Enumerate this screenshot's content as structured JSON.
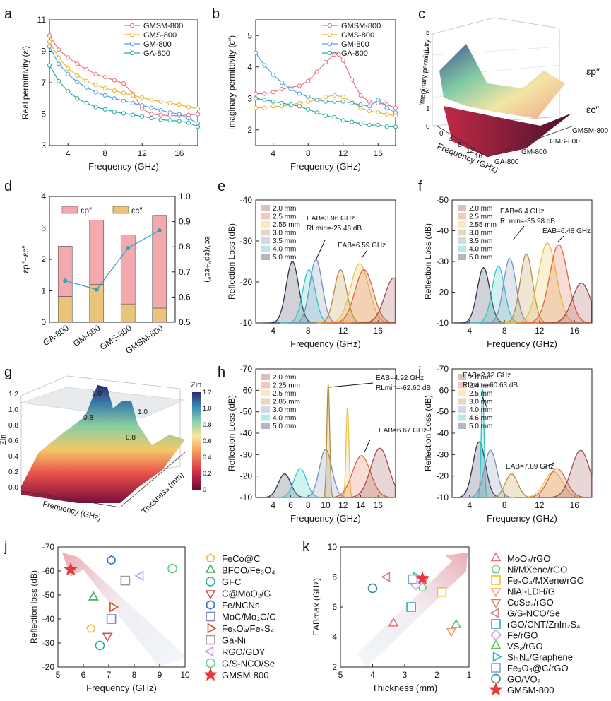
{
  "panel_letters": [
    "a",
    "b",
    "c",
    "d",
    "e",
    "f",
    "g",
    "h",
    "i",
    "j",
    "k"
  ],
  "chart_data": [
    {
      "id": "a",
      "type": "line",
      "xlabel": "Frequency (GHz)",
      "ylabel": "Real permittivity (ε′)",
      "xlim": [
        2,
        18
      ],
      "ylim": [
        3,
        11
      ],
      "xticks": [
        4,
        8,
        12,
        16
      ],
      "yticks": [
        3,
        5,
        7,
        9,
        11
      ],
      "series": [
        {
          "name": "GMSM-800",
          "color": "#e8707a",
          "x": [
            2,
            3,
            4,
            5,
            6,
            7,
            8,
            9,
            10,
            11,
            12,
            13,
            14,
            15,
            16,
            17,
            18
          ],
          "y": [
            10.0,
            9.1,
            8.6,
            8.2,
            7.85,
            7.55,
            7.35,
            7.15,
            6.95,
            6.3,
            5.35,
            5.0,
            4.95,
            4.9,
            4.9,
            4.95,
            5.0
          ]
        },
        {
          "name": "GMS-800",
          "color": "#e8b82a",
          "x": [
            2,
            3,
            4,
            5,
            6,
            7,
            8,
            9,
            10,
            11,
            12,
            13,
            14,
            15,
            16,
            17,
            18
          ],
          "y": [
            9.6,
            8.6,
            7.9,
            7.45,
            7.1,
            6.85,
            6.65,
            6.5,
            6.35,
            6.2,
            6.05,
            5.9,
            5.8,
            5.7,
            5.6,
            5.45,
            5.35
          ]
        },
        {
          "name": "GM-800",
          "color": "#4aa3df",
          "x": [
            2,
            3,
            4,
            5,
            6,
            7,
            8,
            9,
            10,
            11,
            12,
            13,
            14,
            15,
            16,
            17,
            18
          ],
          "y": [
            9.3,
            8.2,
            7.55,
            7.05,
            6.7,
            6.4,
            6.2,
            6.0,
            5.85,
            5.7,
            5.55,
            5.4,
            5.25,
            5.1,
            5.0,
            4.75,
            4.4
          ]
        },
        {
          "name": "GA-800",
          "color": "#2aa9a0",
          "x": [
            2,
            3,
            4,
            5,
            6,
            7,
            8,
            9,
            10,
            11,
            12,
            13,
            14,
            15,
            16,
            17,
            18
          ],
          "y": [
            8.1,
            7.1,
            6.45,
            6.0,
            5.7,
            5.45,
            5.3,
            5.15,
            5.05,
            4.95,
            4.85,
            4.75,
            4.65,
            4.6,
            4.55,
            4.45,
            4.2
          ]
        }
      ]
    },
    {
      "id": "b",
      "type": "line",
      "xlabel": "Frequency (GHz)",
      "ylabel": "Imaginary permittivity (ε″)",
      "xlim": [
        2,
        18
      ],
      "ylim": [
        1.5,
        5.5
      ],
      "xticks": [
        4,
        8,
        12,
        16
      ],
      "yticks": [
        2,
        3,
        4,
        5
      ],
      "series": [
        {
          "name": "GMSM-800",
          "color": "#e8707a",
          "x": [
            2,
            3,
            4,
            5,
            6,
            7,
            8,
            9,
            10,
            11,
            11.5,
            12,
            13,
            14,
            15,
            16,
            17,
            18
          ],
          "y": [
            3.15,
            3.15,
            3.2,
            3.3,
            3.35,
            3.4,
            3.55,
            3.85,
            4.15,
            4.4,
            4.4,
            4.2,
            3.6,
            3.1,
            2.9,
            2.85,
            2.8,
            2.7
          ]
        },
        {
          "name": "GMS-800",
          "color": "#e8b82a",
          "x": [
            2,
            3,
            4,
            5,
            6,
            7,
            8,
            9,
            10,
            11,
            12,
            13,
            14,
            15,
            16,
            17,
            18
          ],
          "y": [
            2.7,
            2.7,
            2.75,
            2.75,
            2.8,
            2.85,
            2.9,
            2.95,
            3.05,
            3.1,
            3.05,
            2.9,
            2.7,
            2.6,
            2.55,
            2.5,
            2.45
          ]
        },
        {
          "name": "GM-800",
          "color": "#4aa3df",
          "x": [
            2,
            3,
            4,
            5,
            6,
            7,
            8,
            9,
            10,
            11,
            12,
            13,
            14,
            15,
            16,
            16.5,
            17,
            18
          ],
          "y": [
            4.45,
            4.05,
            3.75,
            3.5,
            3.3,
            3.15,
            3.05,
            2.95,
            2.9,
            2.9,
            2.9,
            2.85,
            2.8,
            2.75,
            2.95,
            2.9,
            2.7,
            2.55
          ]
        },
        {
          "name": "GA-800",
          "color": "#2aa9a0",
          "x": [
            2,
            3,
            4,
            5,
            6,
            7,
            8,
            9,
            10,
            11,
            12,
            13,
            14,
            15,
            16,
            17,
            18
          ],
          "y": [
            3.0,
            2.95,
            2.9,
            2.85,
            2.8,
            2.75,
            2.65,
            2.55,
            2.45,
            2.4,
            2.3,
            2.25,
            2.2,
            2.15,
            2.15,
            2.1,
            2.1
          ]
        }
      ]
    },
    {
      "id": "c",
      "type": "surface",
      "zlabel": "Imaginary permittivity",
      "xlabel": "Frequency (GHz)",
      "xticks": [
        "0",
        "4",
        "8",
        "12",
        "16"
      ],
      "zticks": [
        "0",
        "1",
        "2",
        "3",
        "4",
        "5"
      ],
      "categories": [
        "GA-800",
        "GM-800",
        "GMS-800",
        "GMSM-800"
      ],
      "series_labels": [
        "εp″",
        "εc″"
      ]
    },
    {
      "id": "d",
      "type": "bar",
      "categories": [
        "GA-800",
        "GM-800",
        "GMS-800",
        "GMSM-800"
      ],
      "ylabel_left": "εp″+εc″",
      "ylabel_right": "εc″/(εp″+εc″)",
      "ylim": [
        0,
        4
      ],
      "yticks": [
        0,
        1,
        2,
        3,
        4
      ],
      "ylim_right": [
        0.5,
        1.0
      ],
      "yticks_right": [
        0.5,
        0.6,
        0.7,
        0.8,
        0.9,
        1.0
      ],
      "series": [
        {
          "name": "εp″",
          "color": "#f3a9ad",
          "values": [
            1.6,
            2.05,
            2.2,
            2.95
          ]
        },
        {
          "name": "εc″",
          "color": "#e9c47a",
          "values": [
            0.82,
            1.2,
            0.58,
            0.45
          ]
        },
        {
          "name": "ratio",
          "color": "#2ca3c0",
          "values": [
            0.665,
            0.63,
            0.795,
            0.865
          ]
        }
      ]
    },
    {
      "id": "e",
      "type": "line",
      "xlabel": "Frequency (GHz)",
      "ylabel": "Reflection Loss (dB)",
      "xlim": [
        2,
        18
      ],
      "ylim": [
        -10,
        -40
      ],
      "xticks": [
        4,
        8,
        12,
        16
      ],
      "yticks": [
        -10,
        -20,
        -30,
        -40
      ],
      "legend": [
        "2.0 mm",
        "2.5 mm",
        "2.55 mm",
        "3.0 mm",
        "3.5 mm",
        "4.0 mm",
        "5.0 mm"
      ],
      "annotations": [
        "EAB=3.96 GHz",
        "RLmin=-25.48 dB",
        "EAB=6.59 GHz"
      ],
      "peaks": [
        {
          "f": 6.2,
          "rl": -25
        },
        {
          "f": 8.1,
          "rl": -23
        },
        {
          "f": 8.9,
          "rl": -25.5
        },
        {
          "f": 11.7,
          "rl": -23
        },
        {
          "f": 13.9,
          "rl": -24.5
        },
        {
          "f": 14.4,
          "rl": -23
        },
        {
          "f": 17.8,
          "rl": -21
        }
      ]
    },
    {
      "id": "f",
      "type": "line",
      "xlabel": "Frequency (GHz)",
      "ylabel": "Reflection Loss (dB)",
      "xlim": [
        2,
        18
      ],
      "ylim": [
        -10,
        -50
      ],
      "xticks": [
        4,
        8,
        12,
        16
      ],
      "yticks": [
        -10,
        -20,
        -30,
        -40,
        -50
      ],
      "legend": [
        "2.0 mm",
        "2.5 mm",
        "2.55 mm",
        "3.0 mm",
        "3.5 mm",
        "4.0 mm",
        "5.0 mm"
      ],
      "annotations": [
        "EAB=6.4 GHz",
        "RLmin=-35.98 dB",
        "EAB=6.48 GHz"
      ],
      "peaks": [
        {
          "f": 5.6,
          "rl": -28
        },
        {
          "f": 7.3,
          "rl": -28.5
        },
        {
          "f": 8.6,
          "rl": -31
        },
        {
          "f": 10.5,
          "rl": -32.5
        },
        {
          "f": 12.9,
          "rl": -36
        },
        {
          "f": 14.2,
          "rl": -35.5
        },
        {
          "f": 16.8,
          "rl": -23
        }
      ]
    },
    {
      "id": "g",
      "type": "surface",
      "xlabel": "Frequency (GHz)",
      "ylabel": "Thickness (mm)",
      "zlabel": "Zin",
      "zticks": [
        "0.0",
        "0.2",
        "0.4",
        "0.6",
        "0.8",
        "1.0",
        "1.2"
      ],
      "colorbar_title": "Zin",
      "colorbar_ticks": [
        "0",
        "0.2",
        "0.4",
        "0.6",
        "0.8",
        "1.0",
        "1.2"
      ],
      "contour_labels": [
        "1.0",
        "1.0",
        "0.8",
        "0.8"
      ]
    },
    {
      "id": "h",
      "type": "line",
      "xlabel": "Frequency (GHz)",
      "ylabel": "Reflection Loss (dB)",
      "xlim": [
        2,
        18
      ],
      "ylim": [
        -10,
        -70
      ],
      "xticks": [
        4,
        6,
        8,
        10,
        12,
        14,
        16
      ],
      "yticks": [
        -10,
        -20,
        -30,
        -40,
        -50,
        -60,
        -70
      ],
      "legend": [
        "2.0 mm",
        "2.25 mm",
        "2.5 mm",
        "2.85 mm",
        "3.0 mm",
        "4.0 mm",
        "5.0 mm"
      ],
      "annotations": [
        "EAB=4.92 GHz",
        "RLmin=-62.60 dB",
        "EAB=6.67 GHz"
      ],
      "peaks": [
        {
          "f": 5.3,
          "rl": -21
        },
        {
          "f": 7.1,
          "rl": -23.5
        },
        {
          "f": 10.0,
          "rl": -32.5
        },
        {
          "f": 10.3,
          "rl": -62.6
        },
        {
          "f": 12.5,
          "rl": -52
        },
        {
          "f": 14.1,
          "rl": -29.5
        },
        {
          "f": 16.2,
          "rl": -33
        }
      ]
    },
    {
      "id": "i",
      "type": "line",
      "xlabel": "Frequency (GHz)",
      "ylabel": "Reflection Loss (dB)",
      "xlim": [
        2,
        18
      ],
      "ylim": [
        -10,
        -70
      ],
      "xticks": [
        4,
        8,
        12,
        16
      ],
      "yticks": [
        -10,
        -20,
        -30,
        -40,
        -50,
        -60,
        -70
      ],
      "legend": [
        "2.0 mm",
        "2.4 mm",
        "2.5 mm",
        "3.0 mm",
        "4.0 mm",
        "4.6 mm",
        "5.0 mm"
      ],
      "annotations": [
        "EAB=2.12 GHz",
        "RLmin=-60.63 dB",
        "EAB=7.89 GHz"
      ],
      "peaks": [
        {
          "f": 5.1,
          "rl": -36
        },
        {
          "f": 5.5,
          "rl": -60.6
        },
        {
          "f": 6.4,
          "rl": -32
        },
        {
          "f": 8.8,
          "rl": -21
        },
        {
          "f": 13.6,
          "rl": -22
        },
        {
          "f": 14.0,
          "rl": -23.5
        },
        {
          "f": 16.7,
          "rl": -32
        }
      ]
    },
    {
      "id": "j",
      "type": "scatter",
      "xlabel": "Frequency (GHz)",
      "ylabel": "Reflection loss (dB)",
      "xlim": [
        5,
        10
      ],
      "ylim": [
        -20,
        -70
      ],
      "xticks": [
        5,
        6,
        7,
        8,
        9,
        10
      ],
      "yticks": [
        -20,
        -30,
        -40,
        -50,
        -60,
        -70
      ],
      "points": [
        {
          "name": "FeCo@C",
          "marker": "pentagon",
          "color": "#f0b93b",
          "x": 6.3,
          "y": -36
        },
        {
          "name": "BFCO/Fe₃O₄",
          "marker": "triangle-up",
          "color": "#3aa85a",
          "x": 6.4,
          "y": -49
        },
        {
          "name": "GFC",
          "marker": "circle",
          "color": "#2aafb0",
          "x": 6.65,
          "y": -29
        },
        {
          "name": "C@MoO₂/G",
          "marker": "triangle-down",
          "color": "#d9534f",
          "x": 6.95,
          "y": -33
        },
        {
          "name": "Fe/NCNs",
          "marker": "hexagon",
          "color": "#3a78c2",
          "x": 7.1,
          "y": -64.5
        },
        {
          "name": "MoC/Mo₂C/C",
          "marker": "square",
          "color": "#7d7fc8",
          "x": 7.1,
          "y": -40
        },
        {
          "name": "Fe₃O₄/Fe₃S₄",
          "marker": "triangle-right",
          "color": "#c9511f",
          "x": 7.15,
          "y": -45
        },
        {
          "name": "Ga-Ni",
          "marker": "square",
          "color": "#9a9a9a",
          "x": 7.65,
          "y": -56
        },
        {
          "name": "RGO/GDY",
          "marker": "triangle-left",
          "color": "#c79ae3",
          "x": 8.25,
          "y": -58
        },
        {
          "name": "G/S-NCO/Se",
          "marker": "circle",
          "color": "#5fcf7d",
          "x": 9.5,
          "y": -61
        },
        {
          "name": "GMSM-800",
          "marker": "star",
          "color": "#e8363a",
          "x": 5.5,
          "y": -60.6
        }
      ]
    },
    {
      "id": "k",
      "type": "scatter",
      "xlabel": "Thickness (mm)",
      "ylabel": "EABmax (GHz)",
      "xlim": [
        5,
        1
      ],
      "ylim": [
        2,
        10
      ],
      "xticks": [
        5,
        4,
        3,
        2,
        1
      ],
      "yticks": [
        2,
        4,
        6,
        8,
        10
      ],
      "points": [
        {
          "name": "MoO₂/rGO",
          "marker": "triangle-up",
          "color": "#e8707a",
          "x": 3.35,
          "y": 4.9
        },
        {
          "name": "Ni/MXene/rGO",
          "marker": "pentagon",
          "color": "#5fcf7d",
          "x": 2.45,
          "y": 7.3
        },
        {
          "name": "Fe₃O₄/MXene/rGO",
          "marker": "square",
          "color": "#f0c02a",
          "x": 1.85,
          "y": 7.0
        },
        {
          "name": "NiAl-LDH/G",
          "marker": "triangle-down",
          "color": "#f0a060",
          "x": 1.55,
          "y": 4.4
        },
        {
          "name": "CoSe₂/rGO",
          "marker": "triangle-down",
          "color": "#e8707a",
          "x": 2.4,
          "y": 7.85
        },
        {
          "name": "G/S-NCO/Se",
          "marker": "triangle-left",
          "color": "#c88a8a",
          "x": 3.55,
          "y": 8.0
        },
        {
          "name": "rGO/CNT/ZnIn₂S₄",
          "marker": "square",
          "color": "#2aafc0",
          "x": 2.8,
          "y": 6.0
        },
        {
          "name": "Fe/rGO",
          "marker": "diamond",
          "color": "#c9a0e0",
          "x": 2.65,
          "y": 7.5
        },
        {
          "name": "VS₂/rGO",
          "marker": "triangle-up",
          "color": "#5fbf6a",
          "x": 1.4,
          "y": 4.8
        },
        {
          "name": "Si₃N₄/Graphene",
          "marker": "triangle-right",
          "color": "#2ab6d0",
          "x": 2.65,
          "y": 8.0
        },
        {
          "name": "Fe₃O₄@C/rGO",
          "marker": "square",
          "color": "#7aa8d8",
          "x": 2.75,
          "y": 7.85
        },
        {
          "name": "GO/VO₂",
          "marker": "circle",
          "color": "#3a8a8a",
          "x": 4.0,
          "y": 7.25
        },
        {
          "name": "GMSM-800",
          "marker": "star",
          "color": "#e8363a",
          "x": 2.45,
          "y": 7.9
        }
      ]
    }
  ]
}
